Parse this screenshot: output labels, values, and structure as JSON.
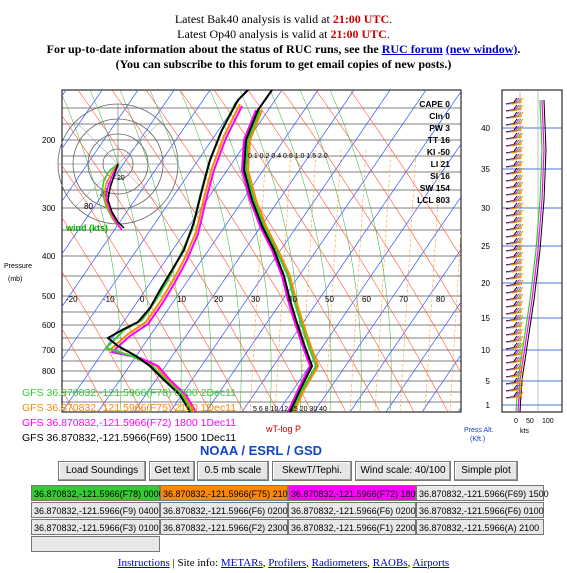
{
  "header": {
    "line1_pre": "Latest Bak40 analysis is valid at ",
    "line1_time": "21:00 UTC",
    "line1_post": ".",
    "line2_pre": "Latest Op40 analysis is valid at ",
    "line2_time": "21:00 UTC",
    "line2_post": ".",
    "line3_pre": "For up-to-date information about the status of RUC runs, see the ",
    "line3_link1": "RUC forum",
    "line3_link2": "(new window)",
    "line3_post": ".",
    "line4": "(You can subscribe to this forum to get email copies of new posts.)"
  },
  "indices": [
    {
      "label": "CAPE",
      "value": "0"
    },
    {
      "label": "CIn",
      "value": "0"
    },
    {
      "label": "PW",
      "value": "3"
    },
    {
      "label": "TT",
      "value": "16"
    },
    {
      "label": "KI",
      "value": "-50"
    },
    {
      "label": "LI",
      "value": "21"
    },
    {
      "label": "SI",
      "value": "16"
    },
    {
      "label": "SW",
      "value": "154"
    },
    {
      "label": "LCL",
      "value": "803"
    }
  ],
  "skewt": {
    "pressure_label": "Pressure",
    "pressure_unit": "(mb)",
    "pressure_ticks": [
      "200",
      "300",
      "400",
      "500",
      "600",
      "700",
      "800"
    ],
    "temp_ticks": [
      "-20",
      "-10",
      "0",
      "10",
      "20",
      "30",
      "40",
      "50",
      "60",
      "70",
      "80"
    ],
    "mixing_ratio_ticks": "0.1 0.2 0.4 0.6 1.0 1.5 2.0",
    "wind_label": "wind (kts)",
    "hodo_ring_labels": [
      "80",
      "40",
      "20"
    ],
    "wt_label": "wT-log P",
    "credit": "NOAA / ESRL / GSD",
    "bottom_scale": "5 6 8 10 12 15 20 30 40"
  },
  "legend": [
    {
      "text": "GFS 36.870832,-121.5966(F78) 0000  2Dec11",
      "color": "#33cc33"
    },
    {
      "text": "GFS 36.870832,-121.5966(F75) 2100  1Dec11",
      "color": "#ff8800"
    },
    {
      "text": "GFS 36.870832,-121.5966(F72) 1800  1Dec11",
      "color": "#ff00ff"
    },
    {
      "text": "GFS 36.870832,-121.5966(F69) 1500  1Dec11",
      "color": "#000000"
    }
  ],
  "wind_panel": {
    "alt_ticks": [
      "40",
      "35",
      "30",
      "25",
      "20",
      "15",
      "10",
      "5",
      "1"
    ],
    "axis_ticks": [
      "0",
      "50",
      "100"
    ],
    "caption_line1": "Press Alt.",
    "caption_line2": "(Kft.)",
    "unit": "kts"
  },
  "buttons": [
    {
      "label": "Load Soundings"
    },
    {
      "label": "Get text"
    },
    {
      "label": "0.5 mb scale"
    },
    {
      "label": "SkewT/Tephi."
    },
    {
      "label": "Wind scale: 40/100"
    },
    {
      "label": "Simple plot"
    }
  ],
  "soundings": [
    [
      {
        "text": "36.870832,-121.5966(F78) 0000",
        "bg": "#33cc33"
      },
      {
        "text": "36.870832,-121.5966(F75) 2100",
        "bg": "#ff8800"
      },
      {
        "text": "36.870832,-121.5966(F72) 1800",
        "bg": "#ff00ff"
      },
      {
        "text": "36.870832,-121.5966(F69) 1500",
        "bg": "#e8e8e8"
      }
    ],
    [
      {
        "text": "36.870832,-121.5966(F9) 0400",
        "bg": "#e8e8e8"
      },
      {
        "text": "36.870832,-121.5966(F6) 0200",
        "bg": "#e8e8e8"
      },
      {
        "text": "36.870832,-121.5966(F6) 0200",
        "bg": "#e8e8e8"
      },
      {
        "text": "36.870832,-121.5966(F6) 0100",
        "bg": "#e8e8e8"
      }
    ],
    [
      {
        "text": "36.870832,-121.5966(F3) 0100",
        "bg": "#e8e8e8"
      },
      {
        "text": "36.870832,-121.5966(F2) 2300",
        "bg": "#e8e8e8"
      },
      {
        "text": "36.870832,-121.5966(F1) 2200",
        "bg": "#e8e8e8"
      },
      {
        "text": "36.870832,-121.5966(A) 2100",
        "bg": "#e8e8e8"
      }
    ]
  ],
  "footer": {
    "instructions": "Instructions",
    "sep": " | Site info: ",
    "links": [
      "METARs",
      "Profilers",
      "Radiometers",
      "RAOBs",
      "Airports"
    ],
    "link_sep": ", "
  }
}
